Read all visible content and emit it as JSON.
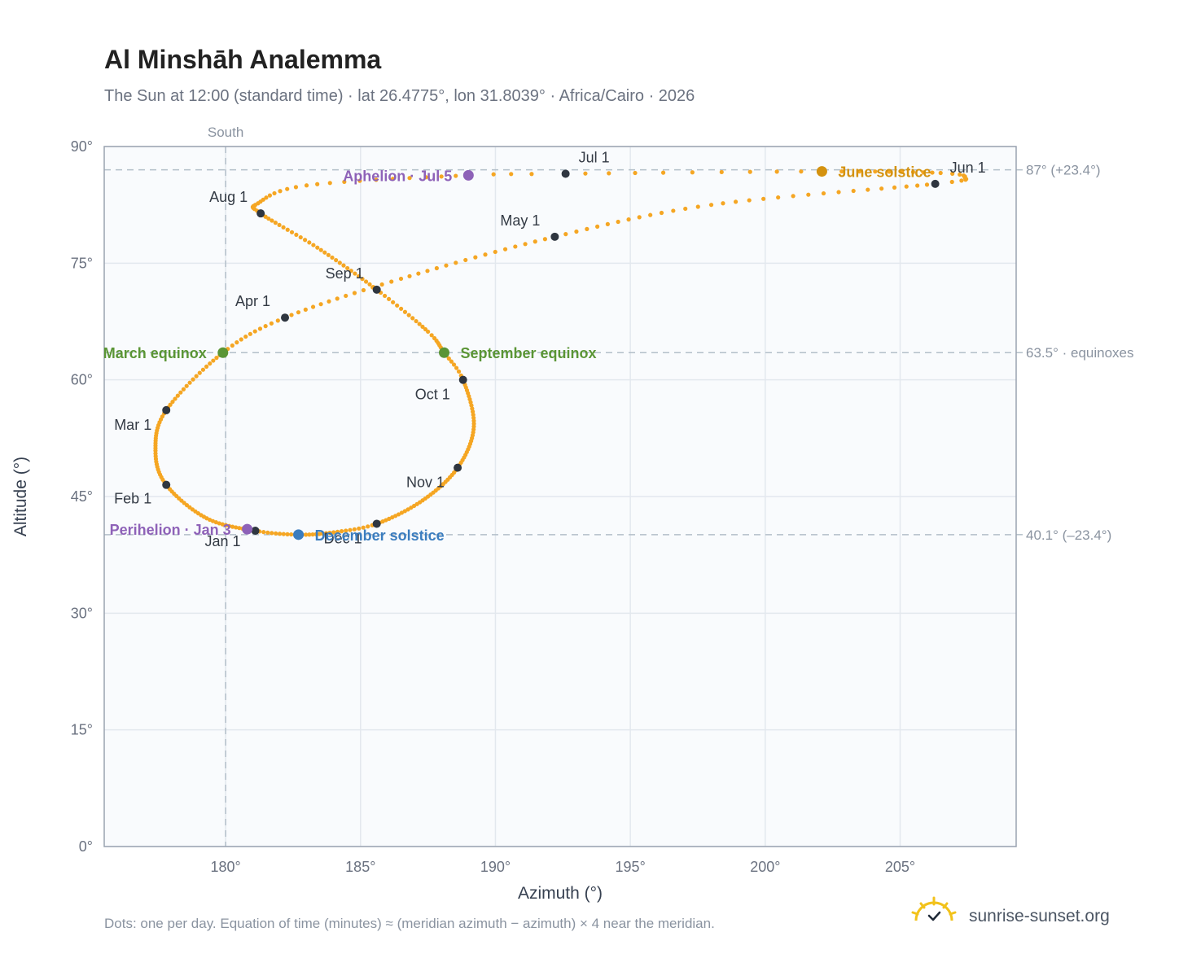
{
  "header": {
    "title": "Al Minshāh Analemma",
    "subtitle": "The Sun at 12:00 (standard time) · lat 26.4775°, lon 31.8039° · Africa/Cairo · 2026"
  },
  "chart_data": {
    "type": "scatter",
    "xlabel": "Azimuth (°)",
    "ylabel": "Altitude (°)",
    "xlim": [
      175.5,
      209.3
    ],
    "ylim": [
      0,
      90
    ],
    "x_ticks": [
      180,
      185,
      190,
      195,
      200,
      205
    ],
    "x_tick_labels": [
      "180°",
      "185°",
      "190°",
      "195°",
      "200°",
      "205°"
    ],
    "y_ticks": [
      0,
      15,
      30,
      45,
      60,
      75,
      90
    ],
    "y_tick_labels": [
      "0°",
      "15°",
      "30°",
      "45°",
      "60°",
      "75°",
      "90°"
    ],
    "grid": true,
    "meridian": {
      "x": 180,
      "label": "South"
    },
    "reference_lines": [
      {
        "y": 87.0,
        "label": "87° (+23.4°)"
      },
      {
        "y": 63.5,
        "label": "63.5° · equinoxes"
      },
      {
        "y": 40.1,
        "label": "40.1° (–23.4°)"
      }
    ],
    "series": [
      {
        "color": "#f5a623",
        "anchors": [
          {
            "day": 1,
            "x": 181.1,
            "y": 40.6
          },
          {
            "day": 16,
            "x": 179.3,
            "y": 42.2
          },
          {
            "day": 32,
            "x": 177.8,
            "y": 46.5
          },
          {
            "day": 45,
            "x": 177.4,
            "y": 50.9
          },
          {
            "day": 60,
            "x": 177.8,
            "y": 56.1
          },
          {
            "day": 79,
            "x": 179.9,
            "y": 63.5
          },
          {
            "day": 91,
            "x": 182.2,
            "y": 68.0
          },
          {
            "day": 105,
            "x": 186.5,
            "y": 73.0
          },
          {
            "day": 121,
            "x": 192.2,
            "y": 78.4
          },
          {
            "day": 135,
            "x": 198.0,
            "y": 82.5
          },
          {
            "day": 152,
            "x": 206.3,
            "y": 85.2
          },
          {
            "day": 158,
            "x": 207.4,
            "y": 86.0
          },
          {
            "day": 163,
            "x": 206.5,
            "y": 86.6
          },
          {
            "day": 172,
            "x": 202.1,
            "y": 86.8
          },
          {
            "day": 182,
            "x": 192.6,
            "y": 86.5
          },
          {
            "day": 186,
            "x": 189.0,
            "y": 86.3
          },
          {
            "day": 197,
            "x": 183.0,
            "y": 85.0
          },
          {
            "day": 206,
            "x": 181.2,
            "y": 82.7
          },
          {
            "day": 213,
            "x": 181.3,
            "y": 81.4
          },
          {
            "day": 228,
            "x": 183.4,
            "y": 77.0
          },
          {
            "day": 244,
            "x": 185.6,
            "y": 71.6
          },
          {
            "day": 258,
            "x": 187.5,
            "y": 66.2
          },
          {
            "day": 266,
            "x": 188.1,
            "y": 63.5
          },
          {
            "day": 274,
            "x": 188.8,
            "y": 60.0
          },
          {
            "day": 290,
            "x": 189.2,
            "y": 54.0
          },
          {
            "day": 305,
            "x": 188.6,
            "y": 48.7
          },
          {
            "day": 320,
            "x": 187.3,
            "y": 44.5
          },
          {
            "day": 335,
            "x": 185.6,
            "y": 41.5
          },
          {
            "day": 345,
            "x": 184.0,
            "y": 40.4
          },
          {
            "day": 355,
            "x": 182.7,
            "y": 40.1
          },
          {
            "day": 366,
            "x": 181.1,
            "y": 40.6
          }
        ]
      }
    ],
    "month_markers": [
      {
        "label": "Jan 1",
        "x": 181.1,
        "y": 40.6
      },
      {
        "label": "Feb 1",
        "x": 177.8,
        "y": 46.5
      },
      {
        "label": "Mar 1",
        "x": 177.8,
        "y": 56.1
      },
      {
        "label": "Apr 1",
        "x": 182.2,
        "y": 68.0
      },
      {
        "label": "May 1",
        "x": 192.2,
        "y": 78.4
      },
      {
        "label": "Jun 1",
        "x": 206.3,
        "y": 85.2
      },
      {
        "label": "Jul 1",
        "x": 192.6,
        "y": 86.5
      },
      {
        "label": "Aug 1",
        "x": 181.3,
        "y": 81.4
      },
      {
        "label": "Sep 1",
        "x": 185.6,
        "y": 71.6
      },
      {
        "label": "Oct 1",
        "x": 188.8,
        "y": 60.0
      },
      {
        "label": "Nov 1",
        "x": 188.6,
        "y": 48.7
      },
      {
        "label": "Dec 1",
        "x": 185.6,
        "y": 41.5
      }
    ],
    "events": [
      {
        "label": "March equinox",
        "x": 179.9,
        "y": 63.5,
        "color": "#5a9535"
      },
      {
        "label": "September equinox",
        "x": 188.1,
        "y": 63.5,
        "color": "#5a9535"
      },
      {
        "label": "June solstice",
        "x": 202.1,
        "y": 86.8,
        "color": "#d4920f"
      },
      {
        "label": "December solstice",
        "x": 182.7,
        "y": 40.1,
        "color": "#3b7dbf"
      },
      {
        "label": "Aphelion · Jul 5",
        "x": 189.0,
        "y": 86.3,
        "color": "#8e62b8"
      },
      {
        "label": "Perihelion · Jan 3",
        "x": 180.8,
        "y": 40.8,
        "color": "#8e62b8"
      }
    ]
  },
  "footer": {
    "note": "Dots: one per day. Equation of time (minutes) ≈ (meridian azimuth − azimuth) × 4 near the meridian.",
    "brand": "sunrise-sunset.org",
    "brand_icon": "sun-check-icon"
  }
}
